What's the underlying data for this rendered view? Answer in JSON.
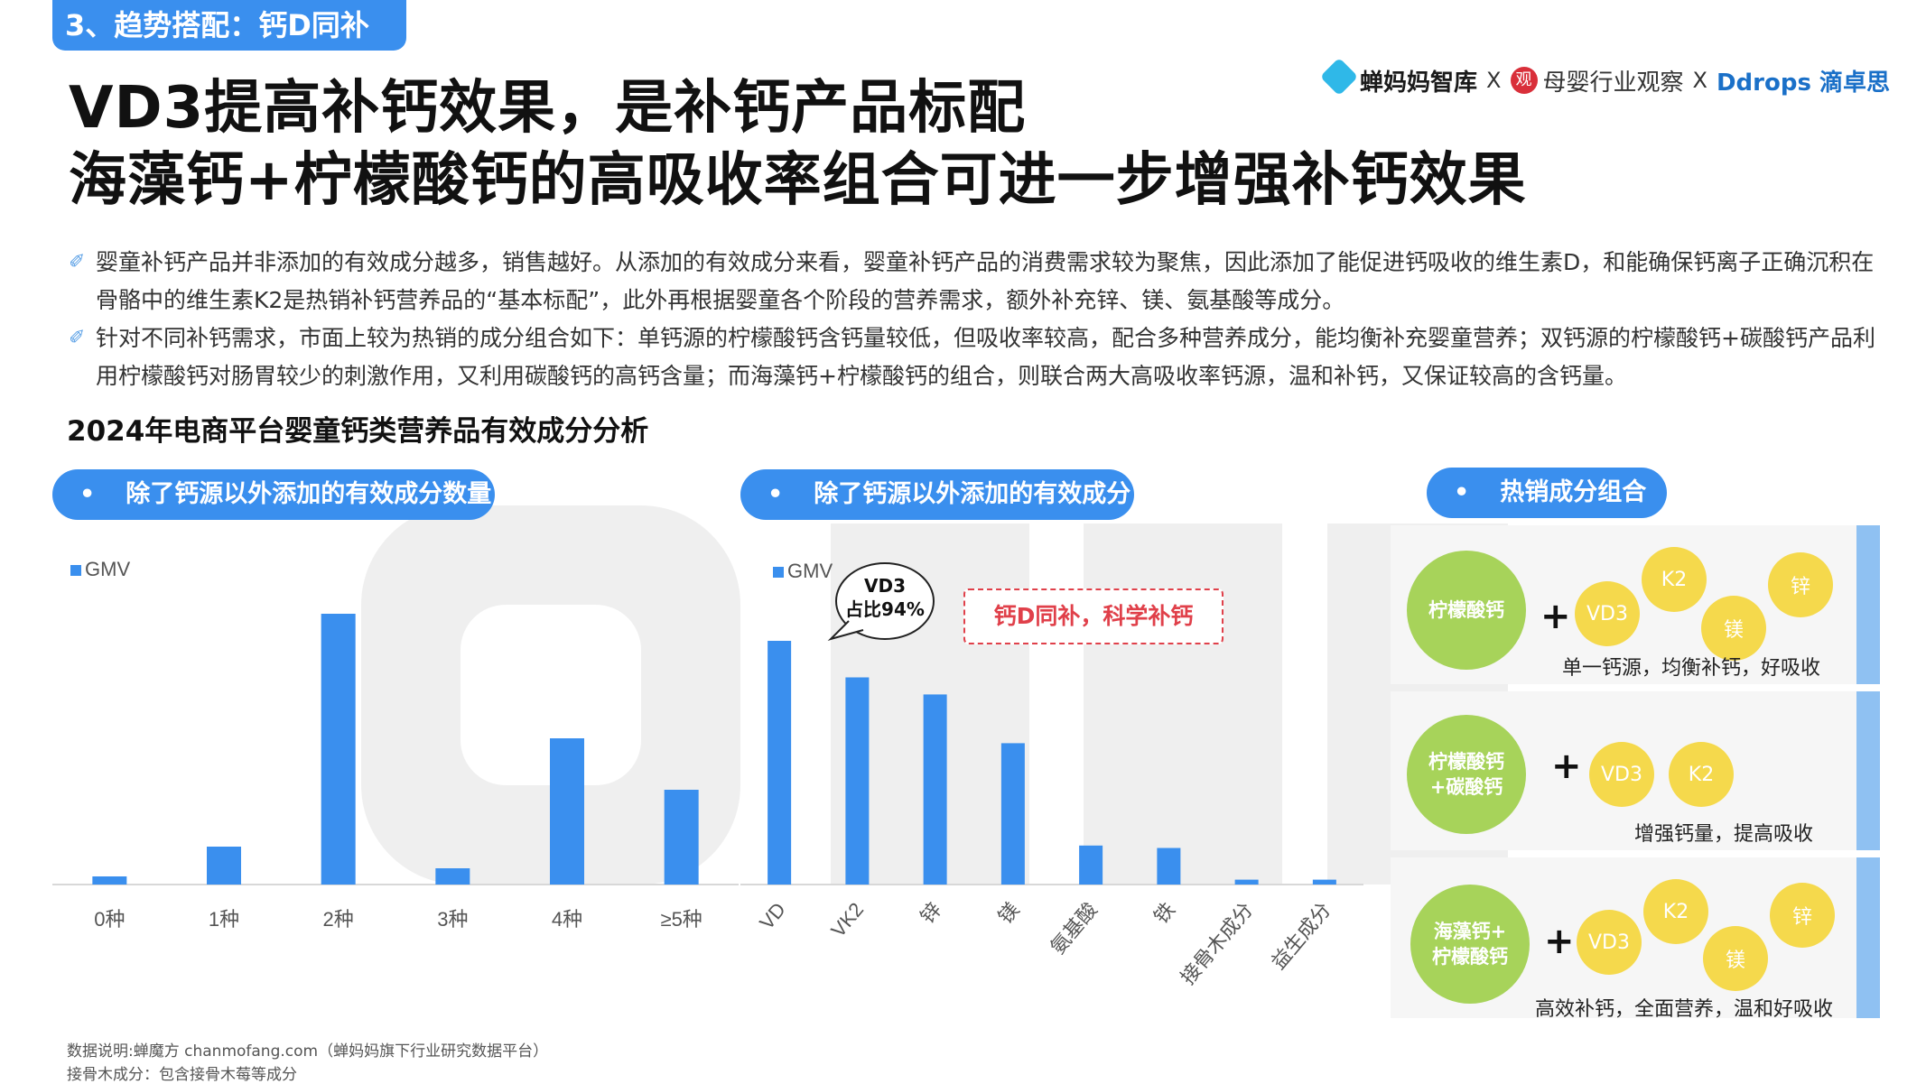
{
  "header": {
    "tag": "3、趋势搭配：钙D同补",
    "logos": [
      "蝉妈妈智库",
      "母婴行业观察",
      "Ddrops 滴卓思"
    ],
    "logo_sep": "X",
    "logo2_badge": "观"
  },
  "headline": {
    "line1": "VD3提高补钙效果，是补钙产品标配",
    "line2": "海藻钙+柠檬酸钙的高吸收率组合可进一步增强补钙效果"
  },
  "bullets": [
    "婴童补钙产品并非添加的有效成分越多，销售越好。从添加的有效成分来看，婴童补钙产品的消费需求较为聚焦，因此添加了能促进钙吸收的维生素D，和能确保钙离子正确沉积在骨骼中的维生素K2是热销补钙营养品的“基本标配”，此外再根据婴童各个阶段的营养需求，额外补充锌、镁、氨基酸等成分。",
    "针对不同补钙需求，市面上较为热销的成分组合如下：单钙源的柠檬酸钙含钙量较低，但吸收率较高，配合多种营养成分，能均衡补充婴童营养；双钙源的柠檬酸钙+碳酸钙产品利用柠檬酸钙对肠胃较少的刺激作用，又利用碳酸钙的高钙含量；而海藻钙+柠檬酸钙的组合，则联合两大高吸收率钙源，温和补钙，又保证较高的含钙量。"
  ],
  "section_title": "2024年电商平台婴童钙类营养品有效成分分析",
  "pills": {
    "p1": "除了钙源以外添加的有效成分数量",
    "p2": "除了钙源以外添加的有效成分",
    "p3": "热销成分组合",
    "dot": "•"
  },
  "chart_data": [
    {
      "type": "bar",
      "title": "除了钙源以外添加的有效成分数量",
      "legend": "GMV",
      "categories": [
        "0种",
        "1种",
        "2种",
        "3种",
        "4种",
        "≥5种"
      ],
      "values": [
        3,
        14,
        100,
        6,
        54,
        35
      ],
      "ylim": [
        0,
        100
      ],
      "y_unit": "relative"
    },
    {
      "type": "bar",
      "title": "除了钙源以外添加的有效成分",
      "legend": "GMV",
      "categories": [
        "VD",
        "VK2",
        "锌",
        "镁",
        "氨基酸",
        "铁",
        "接骨木成分",
        "益生成分"
      ],
      "values": [
        100,
        85,
        78,
        58,
        16,
        15,
        2,
        2
      ],
      "ylim": [
        0,
        100
      ],
      "annotations": {
        "bubble_line1": "VD3",
        "bubble_line2": "占比94%",
        "box": "钙D同补，科学补钙"
      }
    }
  ],
  "combos": [
    {
      "main": "柠檬酸钙",
      "items": [
        "VD3",
        "K2",
        "镁",
        "锌"
      ],
      "caption": "单一钙源，均衡补钙，好吸收"
    },
    {
      "main": "柠檬酸钙\n+碳酸钙",
      "items": [
        "VD3",
        "K2"
      ],
      "caption": "增强钙量，提高吸收"
    },
    {
      "main": "海藻钙+\n柠檬酸钙",
      "items": [
        "VD3",
        "K2",
        "镁",
        "锌"
      ],
      "caption": "高效补钙，全面营养，温和好吸收"
    }
  ],
  "plus": "+",
  "notes": [
    "数据说明:蝉魔方 chanmofang.com（蝉妈妈旗下行业研究数据平台）",
    "接骨木成分：包含接骨木莓等成分"
  ],
  "colors": {
    "accent": "#3a8fee",
    "green": "#a7d35a",
    "yellow": "#f5d94c",
    "side": "#8fc1f2"
  }
}
